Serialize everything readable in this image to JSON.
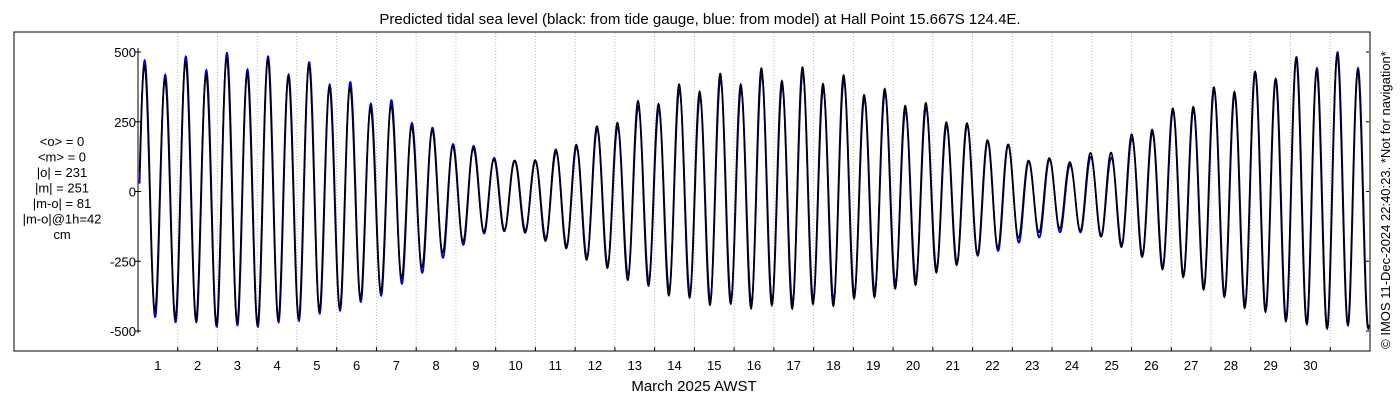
{
  "chart_data": {
    "type": "line",
    "title": "Predicted tidal sea level (black: from tide gauge, blue: from model) at Hall Point 15.667S 124.4E.",
    "xlabel": "March 2025 AWST",
    "ylabel": "",
    "xlim": [
      0.0,
      31.0
    ],
    "ylim": [
      -540,
      540
    ],
    "y_ticks": [
      -500,
      -250,
      0,
      250,
      500
    ],
    "y_tick_labels": [
      "-500",
      "-250",
      "0",
      "250",
      "500"
    ],
    "x_ticks": [
      1,
      2,
      3,
      4,
      5,
      6,
      7,
      8,
      9,
      10,
      11,
      12,
      13,
      14,
      15,
      16,
      17,
      18,
      19,
      20,
      21,
      22,
      23,
      24,
      25,
      26,
      27,
      28,
      29,
      30
    ],
    "x_tick_labels": [
      "1",
      "2",
      "3",
      "4",
      "5",
      "6",
      "7",
      "8",
      "9",
      "10",
      "11",
      "12",
      "13",
      "14",
      "15",
      "16",
      "17",
      "18",
      "19",
      "20",
      "21",
      "22",
      "23",
      "24",
      "25",
      "26",
      "27",
      "28",
      "29",
      "30"
    ],
    "grid": "vertical dotted lines at each day",
    "stats": [
      "<o> = 0",
      "<m> = 0",
      "|o| = 231",
      "|m| = 251",
      "|m-o| = 81",
      "|m-o|@1h=42",
      "cm"
    ],
    "credit": "© IMOS 11-Dec-2024 22:40:23. *Not for navigation*",
    "series": [
      {
        "name": "tide gauge",
        "color": "#000000",
        "daily_range": [
          [
            -440,
            450
          ],
          [
            -470,
            470
          ],
          [
            -480,
            480
          ],
          [
            -470,
            470
          ],
          [
            -440,
            450
          ],
          [
            -400,
            360
          ],
          [
            -330,
            300
          ],
          [
            -240,
            210
          ],
          [
            -150,
            150
          ],
          [
            -140,
            110
          ],
          [
            -190,
            150
          ],
          [
            -260,
            230
          ],
          [
            -330,
            320
          ],
          [
            -380,
            380
          ],
          [
            -410,
            420
          ],
          [
            -420,
            440
          ],
          [
            -420,
            450
          ],
          [
            -410,
            430
          ],
          [
            -380,
            380
          ],
          [
            -340,
            340
          ],
          [
            -270,
            270
          ],
          [
            -210,
            200
          ],
          [
            -150,
            120
          ],
          [
            -130,
            120
          ],
          [
            -180,
            160
          ],
          [
            -260,
            250
          ],
          [
            -330,
            340
          ],
          [
            -400,
            400
          ],
          [
            -450,
            450
          ],
          [
            -490,
            490
          ]
        ]
      },
      {
        "name": "model",
        "color": "#0000cc",
        "daily_range": [
          [
            -460,
            470
          ],
          [
            -480,
            490
          ],
          [
            -490,
            500
          ],
          [
            -480,
            480
          ],
          [
            -450,
            460
          ],
          [
            -410,
            380
          ],
          [
            -350,
            320
          ],
          [
            -260,
            220
          ],
          [
            -160,
            160
          ],
          [
            -130,
            110
          ],
          [
            -180,
            140
          ],
          [
            -250,
            220
          ],
          [
            -310,
            300
          ],
          [
            -360,
            360
          ],
          [
            -390,
            400
          ],
          [
            -400,
            420
          ],
          [
            -400,
            430
          ],
          [
            -390,
            410
          ],
          [
            -360,
            370
          ],
          [
            -320,
            320
          ],
          [
            -260,
            260
          ],
          [
            -220,
            200
          ],
          [
            -170,
            120
          ],
          [
            -140,
            110
          ],
          [
            -170,
            140
          ],
          [
            -250,
            240
          ],
          [
            -320,
            330
          ],
          [
            -390,
            390
          ],
          [
            -440,
            450
          ],
          [
            -490,
            500
          ]
        ]
      }
    ]
  }
}
